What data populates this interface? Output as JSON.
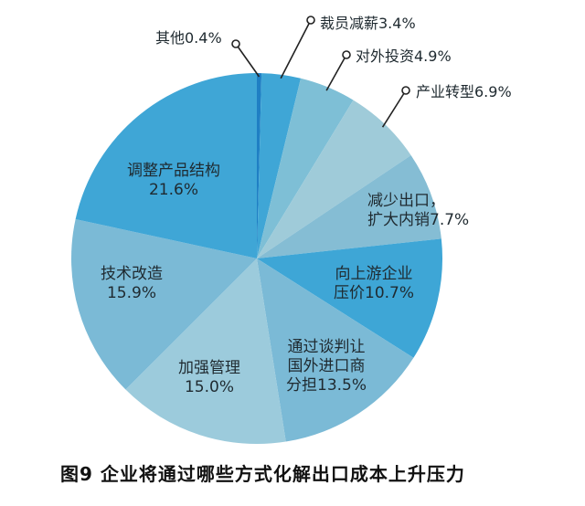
{
  "chart_data": {
    "type": "pie",
    "title": "图9  企业将通过哪些方式化解出口成本上升压力",
    "categories": [
      "其他",
      "裁员减薪",
      "对外投资",
      "产业转型",
      "减少出口，扩大内销",
      "向上游企业压价",
      "通过谈判让国外进口商分担",
      "加强管理",
      "技术改造",
      "调整产品结构"
    ],
    "values": [
      0.4,
      3.4,
      4.9,
      6.9,
      7.7,
      10.7,
      13.5,
      15.0,
      15.9,
      21.6
    ],
    "unit": "%",
    "start_angle": "12 o'clock, clockwise",
    "colors": [
      "#1f7fc4",
      "#3fa6d6",
      "#7ebfd6",
      "#9fcbd9",
      "#85bdd4",
      "#3ea6d6",
      "#7bbad6",
      "#9ccbdc",
      "#7bbad6",
      "#3fa6d6"
    ]
  },
  "labels": {
    "other": "其他0.4%",
    "layoff": "裁员减薪3.4%",
    "invest": "对外投资4.9%",
    "transform": "产业转型6.9%",
    "export_l1": "减少出口，",
    "export_l2": "扩大内销7.7%",
    "upstream_l1": "向上游企业",
    "upstream_l2": "压价10.7%",
    "negotiate_l1": "通过谈判让",
    "negotiate_l2": "国外进口商",
    "negotiate_l3": "分担13.5%",
    "manage_l1": "加强管理",
    "manage_l2": "15.0%",
    "tech_l1": "技术改造",
    "tech_l2": "15.9%",
    "product_l1": "调整产品结构",
    "product_l2": "21.6%"
  },
  "caption": "图9  企业将通过哪些方式化解出口成本上升压力"
}
